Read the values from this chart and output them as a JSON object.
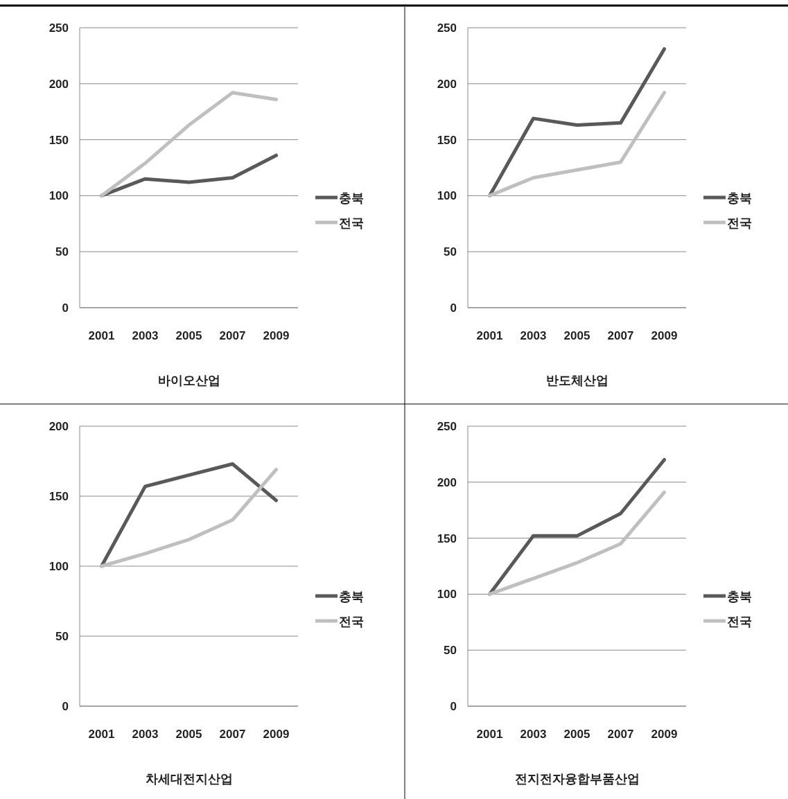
{
  "chart_data": [
    {
      "type": "line",
      "xlabel": "바이오산업",
      "categories": [
        "2001",
        "2003",
        "2005",
        "2007",
        "2009"
      ],
      "ylim": [
        0,
        250
      ],
      "yticks": [
        0,
        50,
        100,
        150,
        200,
        250
      ],
      "grid": "y",
      "legend": "right",
      "series": [
        {
          "name": "충북",
          "color": "#595959",
          "values": [
            100,
            115,
            112,
            116,
            136
          ]
        },
        {
          "name": "전국",
          "color": "#bfbfbf",
          "values": [
            100,
            129,
            163,
            192,
            186
          ]
        }
      ]
    },
    {
      "type": "line",
      "xlabel": "반도체산업",
      "categories": [
        "2001",
        "2003",
        "2005",
        "2007",
        "2009"
      ],
      "ylim": [
        0,
        250
      ],
      "yticks": [
        0,
        50,
        100,
        150,
        200,
        250
      ],
      "grid": "y",
      "legend": "right",
      "series": [
        {
          "name": "충북",
          "color": "#595959",
          "values": [
            100,
            169,
            163,
            165,
            231
          ]
        },
        {
          "name": "전국",
          "color": "#bfbfbf",
          "values": [
            100,
            116,
            123,
            130,
            192
          ]
        }
      ]
    },
    {
      "type": "line",
      "xlabel": "차세대전지산업",
      "categories": [
        "2001",
        "2003",
        "2005",
        "2007",
        "2009"
      ],
      "ylim": [
        0,
        200
      ],
      "yticks": [
        0,
        50,
        100,
        150,
        200
      ],
      "grid": "y",
      "legend": "right",
      "series": [
        {
          "name": "충북",
          "color": "#595959",
          "values": [
            100,
            157,
            165,
            173,
            147
          ]
        },
        {
          "name": "전국",
          "color": "#bfbfbf",
          "values": [
            100,
            109,
            119,
            133,
            169
          ]
        }
      ]
    },
    {
      "type": "line",
      "xlabel": "전지전자융합부품산업",
      "categories": [
        "2001",
        "2003",
        "2005",
        "2007",
        "2009"
      ],
      "ylim": [
        0,
        250
      ],
      "yticks": [
        0,
        50,
        100,
        150,
        200,
        250
      ],
      "grid": "y",
      "legend": "right",
      "series": [
        {
          "name": "충북",
          "color": "#595959",
          "values": [
            100,
            152,
            152,
            172,
            220
          ]
        },
        {
          "name": "전국",
          "color": "#bfbfbf",
          "values": [
            100,
            114,
            128,
            145,
            191
          ]
        }
      ]
    }
  ]
}
